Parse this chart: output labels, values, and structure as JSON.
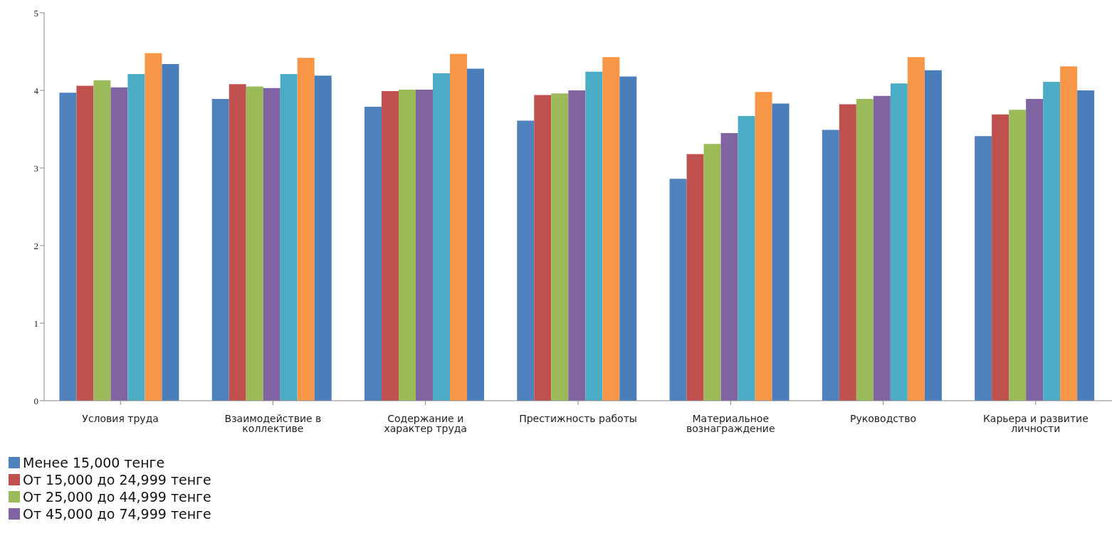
{
  "chart_data": {
    "type": "bar",
    "categories": [
      "Условия труда",
      "Взаимодействие в коллективе",
      "Содержание и характер труда",
      "Престижность работы",
      "Материальное вознаграждение",
      "Руководство",
      "Карьера и развитие личности"
    ],
    "series": [
      {
        "name": "Менее 15,000 тенге",
        "color": "#4f81bd",
        "values": [
          3.97,
          3.89,
          3.79,
          3.61,
          2.86,
          3.49,
          3.41
        ]
      },
      {
        "name": "От 15,000 до 24,999 тенге",
        "color": "#c0504d",
        "values": [
          4.06,
          4.08,
          3.99,
          3.94,
          3.18,
          3.82,
          3.69
        ]
      },
      {
        "name": "От 25,000 до 44,999 тенге",
        "color": "#9bbb59",
        "values": [
          4.13,
          4.05,
          4.01,
          3.96,
          3.31,
          3.89,
          3.75
        ]
      },
      {
        "name": "От 45,000 до 74,999 тенге",
        "color": "#8064a2",
        "values": [
          4.04,
          4.03,
          4.01,
          4.0,
          3.45,
          3.93,
          3.89
        ]
      },
      {
        "color": "#4bacc6",
        "values": [
          4.21,
          4.21,
          4.22,
          4.24,
          3.67,
          4.09,
          4.11
        ]
      },
      {
        "color": "#f79646",
        "values": [
          4.48,
          4.42,
          4.47,
          4.43,
          3.98,
          4.43,
          4.31
        ]
      },
      {
        "color": "#4a7ebb",
        "values": [
          4.34,
          4.19,
          4.28,
          4.18,
          3.83,
          4.26,
          4.0
        ]
      }
    ],
    "ylim": [
      0,
      5
    ],
    "yticks": [
      0,
      1,
      2,
      3,
      4,
      5
    ],
    "legend": "bottom left"
  }
}
